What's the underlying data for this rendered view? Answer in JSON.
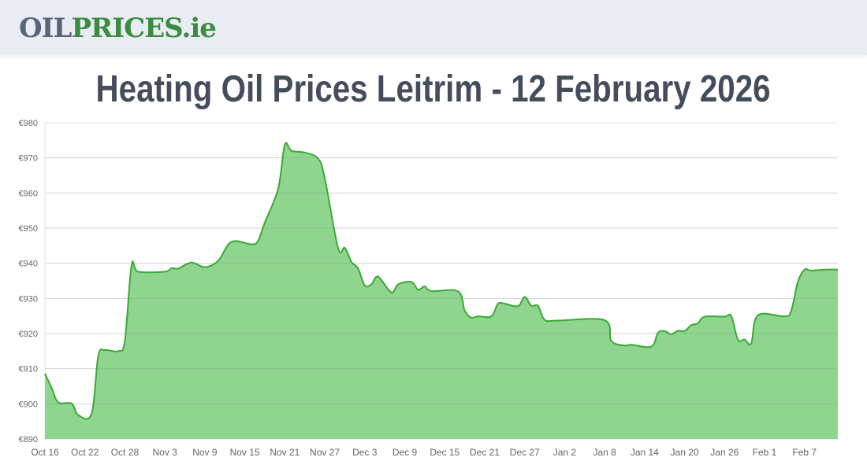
{
  "header": {
    "logo": {
      "part1": "OIL",
      "part2": "PRICES.ie",
      "colors": {
        "part1": "#5a6478",
        "part2": "#3b8c3f"
      }
    }
  },
  "page": {
    "title": "Heating Oil Prices Leitrim - 12 February 2026"
  },
  "chart_data": {
    "type": "area",
    "title": "",
    "xlabel": "",
    "ylabel": "",
    "ylim": [
      890,
      980
    ],
    "y_ticks": [
      "€890",
      "€900",
      "€910",
      "€920",
      "€930",
      "€940",
      "€950",
      "€960",
      "€970",
      "€980"
    ],
    "y_tick_values": [
      890,
      900,
      910,
      920,
      930,
      940,
      950,
      960,
      970,
      980
    ],
    "x_ticks": [
      "Oct 16",
      "Oct 22",
      "Oct 28",
      "Nov 3",
      "Nov 9",
      "Nov 15",
      "Nov 21",
      "Nov 27",
      "Dec 3",
      "Dec 9",
      "Dec 15",
      "Dec 21",
      "Dec 27",
      "Jan 2",
      "Jan 8",
      "Jan 14",
      "Jan 20",
      "Jan 26",
      "Feb 1",
      "Feb 7"
    ],
    "grid": true,
    "legend": "none",
    "colors": {
      "line": "#3aaa35",
      "fill": "#8fd48f"
    },
    "series": [
      {
        "points": [
          [
            "Oct 16",
            908.6
          ],
          [
            "Oct 17",
            904.6
          ],
          [
            "Oct 18",
            900.4
          ],
          [
            "Oct 20",
            900.1
          ],
          [
            "Oct 21",
            896.8
          ],
          [
            "Oct 23",
            897.2
          ],
          [
            "Oct 24",
            913.6
          ],
          [
            "Oct 25",
            915.3
          ],
          [
            "Oct 27",
            915.0
          ],
          [
            "Oct 28",
            918.0
          ],
          [
            "Oct 29",
            939.4
          ],
          [
            "Oct 30",
            937.6
          ],
          [
            "Nov 3",
            937.6
          ],
          [
            "Nov 4",
            938.6
          ],
          [
            "Nov 5",
            938.5
          ],
          [
            "Nov 7",
            940.2
          ],
          [
            "Nov 9",
            938.9
          ],
          [
            "Nov 11",
            940.7
          ],
          [
            "Nov 13",
            946.1
          ],
          [
            "Nov 16",
            945.4
          ],
          [
            "Nov 17",
            946.4
          ],
          [
            "Nov 18",
            951.6
          ],
          [
            "Nov 20",
            961.2
          ],
          [
            "Nov 21",
            973.7
          ],
          [
            "Nov 22",
            972.0
          ],
          [
            "Nov 24",
            971.5
          ],
          [
            "Nov 26",
            969.8
          ],
          [
            "Nov 27",
            964.2
          ],
          [
            "Nov 29",
            944.3
          ],
          [
            "Nov 30",
            944.4
          ],
          [
            "Dec 1",
            940.4
          ],
          [
            "Dec 2",
            938.5
          ],
          [
            "Dec 3",
            933.7
          ],
          [
            "Dec 4",
            934.0
          ],
          [
            "Dec 5",
            936.2
          ],
          [
            "Dec 7",
            931.7
          ],
          [
            "Dec 8",
            934.0
          ],
          [
            "Dec 10",
            934.7
          ],
          [
            "Dec 11",
            932.5
          ],
          [
            "Dec 12",
            933.4
          ],
          [
            "Dec 13",
            932.1
          ],
          [
            "Dec 17",
            932.0
          ],
          [
            "Dec 18",
            926.5
          ],
          [
            "Dec 19",
            924.5
          ],
          [
            "Dec 20",
            924.9
          ],
          [
            "Dec 22",
            924.9
          ],
          [
            "Dec 23",
            928.5
          ],
          [
            "Dec 24",
            928.5
          ],
          [
            "Dec 26",
            927.8
          ],
          [
            "Dec 27",
            930.4
          ],
          [
            "Dec 28",
            927.9
          ],
          [
            "Dec 29",
            927.9
          ],
          [
            "Dec 30",
            923.9
          ],
          [
            "Jan 1",
            923.7
          ],
          [
            "Jan 8",
            923.8
          ],
          [
            "Jan 9",
            917.9
          ],
          [
            "Jan 11",
            916.6
          ],
          [
            "Jan 12",
            916.8
          ],
          [
            "Jan 15",
            916.3
          ],
          [
            "Jan 16",
            920.2
          ],
          [
            "Jan 17",
            920.7
          ],
          [
            "Jan 18",
            919.8
          ],
          [
            "Jan 19",
            920.8
          ],
          [
            "Jan 20",
            920.7
          ],
          [
            "Jan 21",
            922.4
          ],
          [
            "Jan 22",
            922.9
          ],
          [
            "Jan 23",
            924.8
          ],
          [
            "Jan 26",
            924.8
          ],
          [
            "Jan 27",
            925.0
          ],
          [
            "Jan 28",
            918.3
          ],
          [
            "Jan 29",
            918.3
          ],
          [
            "Jan 30",
            917.2
          ],
          [
            "Jan 31",
            925.2
          ],
          [
            "Feb 4",
            924.9
          ],
          [
            "Feb 5",
            926.5
          ],
          [
            "Feb 6",
            934.7
          ],
          [
            "Feb 7",
            938.2
          ],
          [
            "Feb 8",
            937.9
          ],
          [
            "Feb 10",
            938.2
          ],
          [
            "Feb 12",
            938.2
          ]
        ]
      }
    ]
  }
}
